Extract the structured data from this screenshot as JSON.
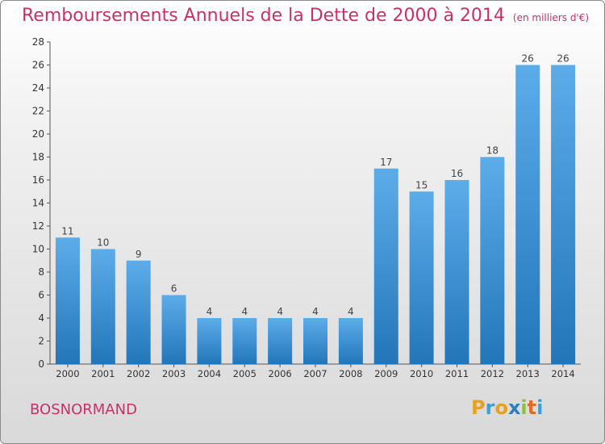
{
  "header": {
    "title": "Remboursements Annuels de la Dette de 2000 à 2014",
    "unit": "(en milliers d'€)"
  },
  "footer": {
    "commune": "BOSNORMAND",
    "logo_text": "Proxiti"
  },
  "colors": {
    "title": "#c8306a",
    "bar_top": "#5dacea",
    "bar_bottom": "#2276b8",
    "logo_p": "#e8a020",
    "logo_r": "#3aa0d8",
    "logo_o": "#e8a020",
    "logo_x": "#2a7fc0",
    "logo_i": "#8cc040",
    "logo_t": "#e06a20",
    "logo_i2": "#3aa0d8"
  },
  "chart_data": {
    "type": "bar",
    "categories": [
      "2000",
      "2001",
      "2002",
      "2003",
      "2004",
      "2005",
      "2006",
      "2007",
      "2008",
      "2009",
      "2010",
      "2011",
      "2012",
      "2013",
      "2014"
    ],
    "values": [
      11,
      10,
      9,
      6,
      4,
      4,
      4,
      4,
      4,
      17,
      15,
      16,
      18,
      26,
      26
    ],
    "data_labels": [
      "11",
      "10",
      "9",
      "6",
      "4",
      "4",
      "4",
      "4",
      "4",
      "17",
      "15",
      "16",
      "18",
      "26",
      "26"
    ],
    "yticks": [
      0,
      2,
      4,
      6,
      8,
      10,
      12,
      14,
      16,
      18,
      20,
      22,
      24,
      26,
      28
    ],
    "ylim": [
      0,
      28
    ],
    "grid": false,
    "legend": "none"
  }
}
